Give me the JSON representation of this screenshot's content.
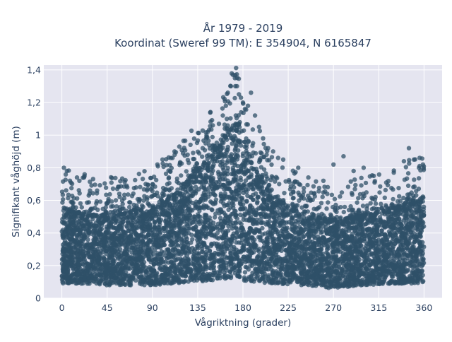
{
  "chart_data": {
    "type": "scatter",
    "title": [
      "År 1979 - 2019",
      "Koordinat (Sweref 99 TM): E 354904, N 6165847"
    ],
    "xlabel": "Vågriktning (grader)",
    "ylabel": "Signifikant våghöjd (m)",
    "xlim": [
      -18,
      378
    ],
    "ylim": [
      0,
      1.43
    ],
    "x_ticks": [
      0,
      45,
      90,
      135,
      180,
      225,
      270,
      315,
      360
    ],
    "x_tick_labels": [
      "0",
      "45",
      "90",
      "135",
      "180",
      "225",
      "270",
      "315",
      "360"
    ],
    "y_ticks": [
      0,
      0.2,
      0.4,
      0.6,
      0.8,
      1.0,
      1.2,
      1.4
    ],
    "y_tick_labels": [
      "0",
      "0,2",
      "0,4",
      "0,6",
      "0,8",
      "1",
      "1,2",
      "1,4"
    ],
    "grid": true,
    "legend": "none",
    "point_color": "#2f5068",
    "plot_bg": "#e5e5f0",
    "envelope": {
      "x": [
        0,
        15,
        45,
        90,
        110,
        130,
        150,
        165,
        172,
        180,
        190,
        210,
        240,
        270,
        300,
        330,
        350,
        360
      ],
      "y_min": [
        0.09,
        0.09,
        0.08,
        0.08,
        0.09,
        0.1,
        0.11,
        0.12,
        0.12,
        0.11,
        0.1,
        0.09,
        0.08,
        0.06,
        0.08,
        0.09,
        0.09,
        0.1
      ],
      "y_core_top": [
        0.55,
        0.52,
        0.5,
        0.55,
        0.62,
        0.75,
        0.88,
        1.0,
        1.08,
        1.02,
        0.8,
        0.62,
        0.5,
        0.48,
        0.5,
        0.55,
        0.6,
        0.62
      ]
    },
    "outliers": [
      [
        2,
        0.8
      ],
      [
        5,
        0.78
      ],
      [
        8,
        0.72
      ],
      [
        15,
        0.74
      ],
      [
        22,
        0.74
      ],
      [
        35,
        0.66
      ],
      [
        55,
        0.67
      ],
      [
        65,
        0.68
      ],
      [
        95,
        0.82
      ],
      [
        100,
        0.85
      ],
      [
        110,
        0.86
      ],
      [
        125,
        0.88
      ],
      [
        140,
        0.92
      ],
      [
        145,
        1.02
      ],
      [
        150,
        1.06
      ],
      [
        160,
        1.12
      ],
      [
        163,
        1.18
      ],
      [
        165,
        1.26
      ],
      [
        168,
        1.3
      ],
      [
        170,
        1.37
      ],
      [
        172,
        1.35
      ],
      [
        174,
        1.3
      ],
      [
        176,
        1.25
      ],
      [
        178,
        1.23
      ],
      [
        180,
        1.2
      ],
      [
        182,
        1.16
      ],
      [
        185,
        1.18
      ],
      [
        188,
        1.26
      ],
      [
        192,
        1.12
      ],
      [
        196,
        1.05
      ],
      [
        200,
        0.98
      ],
      [
        205,
        0.92
      ],
      [
        210,
        0.9
      ],
      [
        215,
        0.86
      ],
      [
        220,
        0.85
      ],
      [
        235,
        0.8
      ],
      [
        245,
        0.74
      ],
      [
        260,
        0.72
      ],
      [
        270,
        0.82
      ],
      [
        280,
        0.87
      ],
      [
        290,
        0.78
      ],
      [
        300,
        0.8
      ],
      [
        310,
        0.75
      ],
      [
        330,
        0.77
      ],
      [
        340,
        0.84
      ],
      [
        345,
        0.92
      ],
      [
        350,
        0.85
      ],
      [
        355,
        0.8
      ],
      [
        359,
        0.82
      ]
    ]
  }
}
